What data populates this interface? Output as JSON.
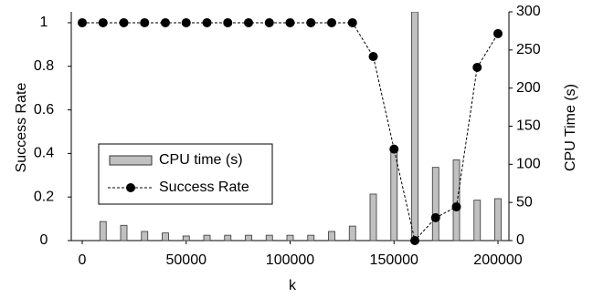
{
  "chart_data": {
    "type": "bar-line",
    "x_label": "k",
    "y_label": "Success Rate",
    "y2_label": "CPU Time (s)",
    "xlim": [
      0,
      200000
    ],
    "xticks": [
      0,
      50000,
      100000,
      150000,
      200000
    ],
    "ylim": [
      0,
      1.05
    ],
    "yticks": [
      0,
      0.2,
      0.4,
      0.6,
      0.8,
      1
    ],
    "y2lim": [
      0,
      300
    ],
    "y2ticks": [
      0,
      50,
      100,
      150,
      200,
      250,
      300
    ],
    "legend": "lower-left",
    "series": [
      {
        "name": "CPU time (s)",
        "kind": "bar",
        "axis": "y2",
        "color": "#c0c0c0",
        "x": [
          10000,
          20000,
          30000,
          40000,
          50000,
          60000,
          70000,
          80000,
          90000,
          100000,
          110000,
          120000,
          130000,
          140000,
          150000,
          160000,
          170000,
          180000,
          190000,
          200000
        ],
        "values": [
          25,
          20,
          12,
          10,
          6,
          7,
          7,
          7,
          7,
          7,
          7,
          12,
          19,
          61,
          121,
          300,
          96,
          106,
          53,
          55
        ]
      },
      {
        "name": "Success Rate",
        "kind": "line",
        "axis": "y",
        "color": "#000000",
        "x": [
          0,
          10000,
          20000,
          30000,
          40000,
          50000,
          60000,
          70000,
          80000,
          90000,
          100000,
          110000,
          120000,
          130000,
          140000,
          150000,
          160000,
          170000,
          180000,
          190000,
          200000
        ],
        "values": [
          1,
          1,
          1,
          1,
          1,
          1,
          1,
          1,
          1,
          1,
          1,
          1,
          1,
          1,
          0.845,
          0.42,
          0,
          0.105,
          0.155,
          0.795,
          0.95
        ]
      }
    ]
  }
}
